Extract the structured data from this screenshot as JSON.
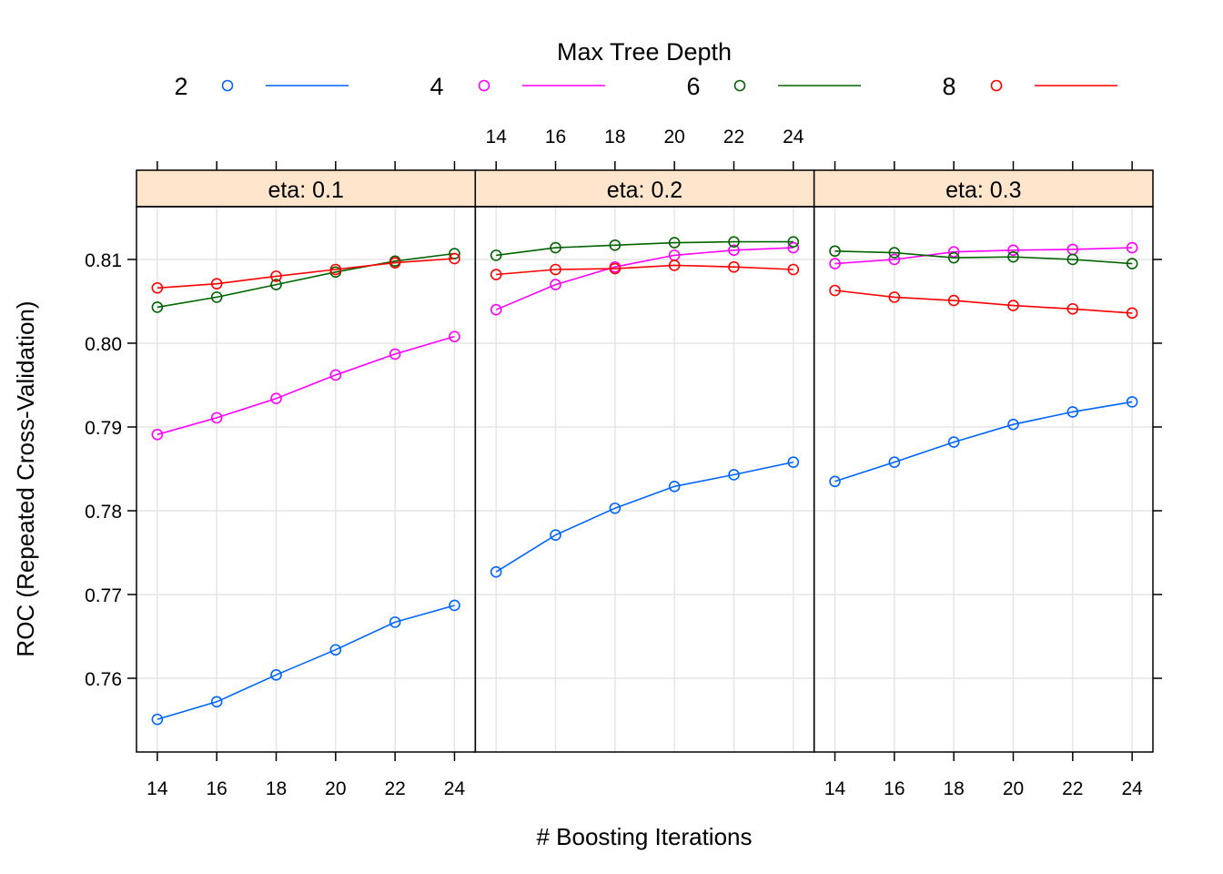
{
  "chart_data": {
    "type": "line",
    "legend_title": "Max Tree Depth",
    "legend_placement": "top",
    "xlabel": "# Boosting Iterations",
    "ylabel": "ROC (Repeated Cross-Validation)",
    "x": [
      14,
      16,
      18,
      20,
      22,
      24
    ],
    "x_ticks": [
      "14",
      "16",
      "18",
      "20",
      "22",
      "24"
    ],
    "xlim": [
      13.3,
      24.7
    ],
    "y_ticks": [
      0.76,
      0.77,
      0.78,
      0.79,
      0.8,
      0.81
    ],
    "y_tick_labels": [
      "0.76",
      "0.77",
      "0.78",
      "0.79",
      "0.80",
      "0.81"
    ],
    "ylim": [
      0.7512,
      0.8163
    ],
    "grid": true,
    "series_meta": [
      {
        "name": "2",
        "color": "#0066ff"
      },
      {
        "name": "4",
        "color": "#ff00ff"
      },
      {
        "name": "6",
        "color": "#006400"
      },
      {
        "name": "8",
        "color": "#ff0000"
      }
    ],
    "panels": [
      {
        "strip": "eta: 0.1",
        "series": [
          {
            "name": "2",
            "values": [
              0.7551,
              0.7572,
              0.7604,
              0.7634,
              0.7667,
              0.7687
            ]
          },
          {
            "name": "4",
            "values": [
              0.7891,
              0.7911,
              0.7934,
              0.7962,
              0.7987,
              0.8008
            ]
          },
          {
            "name": "6",
            "values": [
              0.8043,
              0.8055,
              0.807,
              0.8085,
              0.8098,
              0.8107
            ]
          },
          {
            "name": "8",
            "values": [
              0.8066,
              0.8071,
              0.808,
              0.8088,
              0.8096,
              0.8101
            ]
          }
        ]
      },
      {
        "strip": "eta: 0.2",
        "series": [
          {
            "name": "2",
            "values": [
              0.7727,
              0.7771,
              0.7803,
              0.7829,
              0.7843,
              0.7858
            ]
          },
          {
            "name": "4",
            "values": [
              0.804,
              0.807,
              0.8091,
              0.8105,
              0.8111,
              0.8114
            ]
          },
          {
            "name": "6",
            "values": [
              0.8105,
              0.8114,
              0.8117,
              0.812,
              0.8121,
              0.8121
            ]
          },
          {
            "name": "8",
            "values": [
              0.8082,
              0.8088,
              0.8089,
              0.8093,
              0.8091,
              0.8088
            ]
          }
        ]
      },
      {
        "strip": "eta: 0.3",
        "series": [
          {
            "name": "2",
            "values": [
              0.7835,
              0.7858,
              0.7882,
              0.7903,
              0.7918,
              0.793
            ]
          },
          {
            "name": "4",
            "values": [
              0.8095,
              0.81,
              0.8109,
              0.8111,
              0.8112,
              0.8114
            ]
          },
          {
            "name": "6",
            "values": [
              0.811,
              0.8108,
              0.8102,
              0.8103,
              0.81,
              0.8095
            ]
          },
          {
            "name": "8",
            "values": [
              0.8063,
              0.8055,
              0.8051,
              0.8045,
              0.8041,
              0.8036
            ]
          }
        ]
      }
    ]
  }
}
